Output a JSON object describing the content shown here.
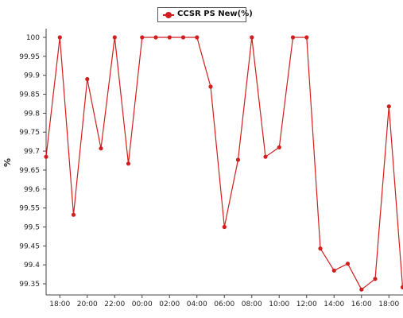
{
  "chart_data": {
    "type": "line",
    "title": "",
    "xlabel": "",
    "ylabel": "%",
    "legend": {
      "placement": "top-center",
      "entries": [
        "CCSR PS New(%)"
      ]
    },
    "ylim": [
      99.3,
      100.05
    ],
    "y_ticks": [
      "100",
      "99.95",
      "99.9",
      "99.85",
      "99.8",
      "99.75",
      "99.7",
      "99.65",
      "99.6",
      "99.55",
      "99.5",
      "99.45",
      "99.4",
      "99.35"
    ],
    "y_tick_values": [
      100,
      99.95,
      99.9,
      99.85,
      99.8,
      99.75,
      99.7,
      99.65,
      99.6,
      99.55,
      99.5,
      99.45,
      99.4,
      99.35
    ],
    "x_ticks": [
      "18:00",
      "20:00",
      "22:00",
      "00:00",
      "02:00",
      "04:00",
      "06:00",
      "08:00",
      "10:00",
      "12:00",
      "14:00",
      "16:00",
      "18:00"
    ],
    "x_tick_hours": [
      1,
      3,
      5,
      7,
      9,
      11,
      13,
      15,
      17,
      19,
      21,
      23,
      25
    ],
    "x_hours": [
      0,
      1,
      2,
      3,
      4,
      5,
      6,
      7,
      8,
      9,
      10,
      11,
      12,
      13,
      14,
      15,
      16,
      17,
      18,
      19,
      20,
      21,
      22,
      23,
      24,
      25,
      26
    ],
    "grid": false,
    "series": [
      {
        "name": "CCSR PS New(%)",
        "color": "#d21e1e",
        "values": [
          99.685,
          100,
          99.532,
          99.89,
          99.707,
          100,
          99.667,
          100,
          100,
          100,
          100,
          100,
          99.87,
          99.5,
          99.677,
          100,
          99.685,
          99.71,
          100,
          100,
          99.443,
          99.385,
          99.403,
          99.335,
          99.363,
          99.818,
          99.341
        ]
      }
    ]
  }
}
